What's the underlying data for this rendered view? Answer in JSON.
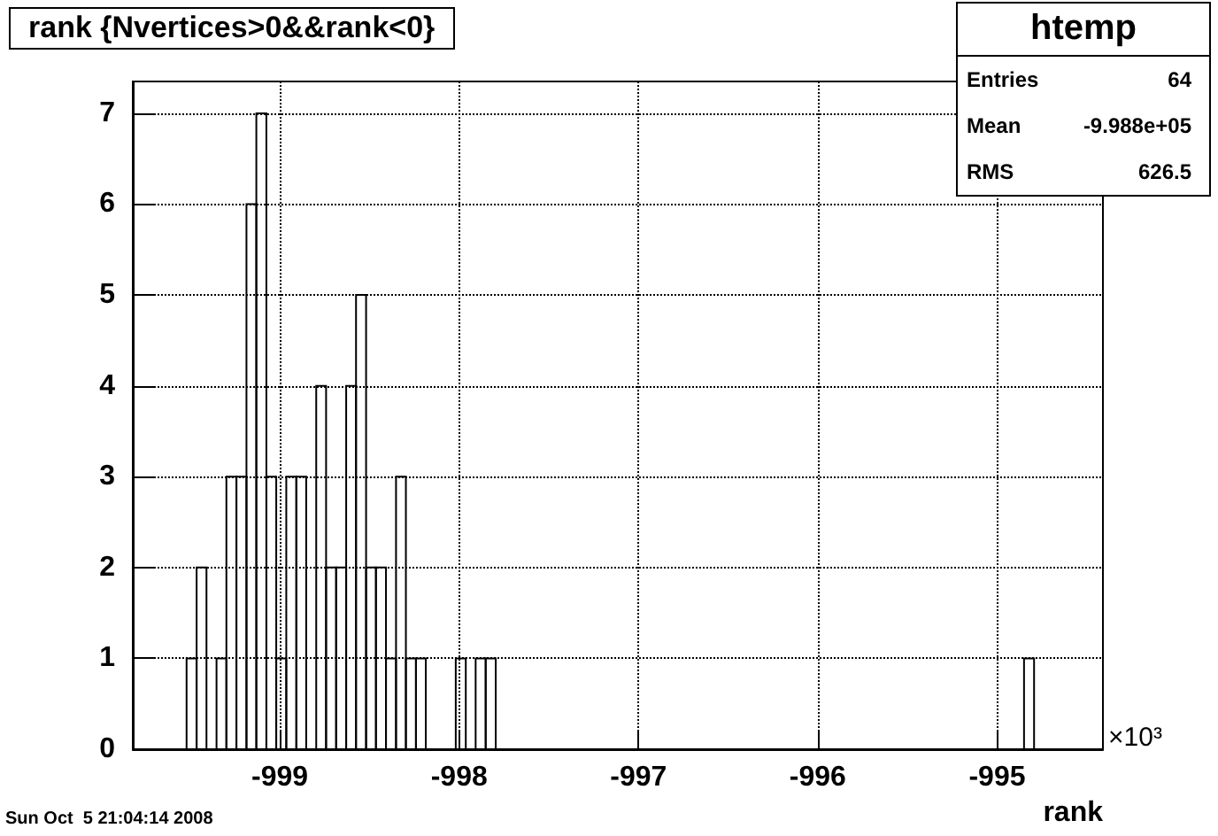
{
  "chart_data": {
    "type": "histogram",
    "title": "rank {Nvertices>0&&rank<0}",
    "xlabel": "rank",
    "bins": [
      -999.52,
      -999.464,
      -999.409,
      -999.353,
      -999.298,
      -999.242,
      -999.186,
      -999.131,
      -999.075,
      -999.02,
      -998.964,
      -998.908,
      -998.853,
      -998.797,
      -998.742,
      -998.686,
      -998.63,
      -998.575,
      -998.519,
      -998.464,
      -998.408,
      -998.352,
      -998.297,
      -998.241,
      -998.186,
      -998.13,
      -998.074,
      -998.019,
      -997.963,
      -997.908,
      -997.852,
      -997.796,
      -997.741,
      -997.685,
      -997.63,
      -997.574,
      -997.518,
      -997.463,
      -997.407,
      -997.352,
      -997.296,
      -997.24,
      -997.185,
      -997.129,
      -997.074,
      -997.018,
      -996.962,
      -996.907,
      -996.851,
      -996.796,
      -996.74,
      -996.684,
      -996.629,
      -996.573,
      -996.518,
      -996.462,
      -996.406,
      -996.351,
      -996.295,
      -996.24,
      -996.184,
      -996.128,
      -996.073,
      -996.017,
      -995.962,
      -995.906,
      -995.85,
      -995.795,
      -995.739,
      -995.684,
      -995.628,
      -995.572,
      -995.517,
      -995.461,
      -995.406,
      -995.35,
      -995.294,
      -995.239,
      -995.183,
      -995.128,
      -995.072,
      -995.016,
      -994.961,
      -994.905,
      -994.85,
      -994.794
    ],
    "values": [
      1,
      2,
      0,
      1,
      3,
      3,
      6,
      7,
      3,
      1,
      3,
      3,
      0,
      4,
      2,
      2,
      4,
      5,
      2,
      2,
      1,
      3,
      1,
      1,
      0,
      0,
      0,
      1,
      0,
      1,
      1,
      0,
      0,
      0,
      0,
      0,
      0,
      0,
      0,
      0,
      0,
      0,
      0,
      0,
      0,
      0,
      0,
      0,
      0,
      0,
      0,
      0,
      0,
      0,
      0,
      0,
      0,
      0,
      0,
      0,
      0,
      0,
      0,
      0,
      0,
      0,
      0,
      0,
      0,
      0,
      0,
      0,
      0,
      0,
      0,
      0,
      0,
      0,
      0,
      0,
      0,
      0,
      0,
      0,
      1
    ],
    "color": "#000000",
    "xlim": [
      -999.82,
      -994.41
    ],
    "xticks": [
      -999,
      -998,
      -997,
      -996,
      -995
    ],
    "ylim": [
      0,
      7.35
    ],
    "yticks": [
      0,
      1,
      2,
      3,
      4,
      5,
      6,
      7
    ],
    "grid": true,
    "annotations": [
      "htemp",
      "Entries",
      "64",
      "Mean",
      "-9.988e+05",
      "RMS",
      "626.5",
      "Sun Oct  5 21:04:14 2008",
      "×10³"
    ]
  }
}
